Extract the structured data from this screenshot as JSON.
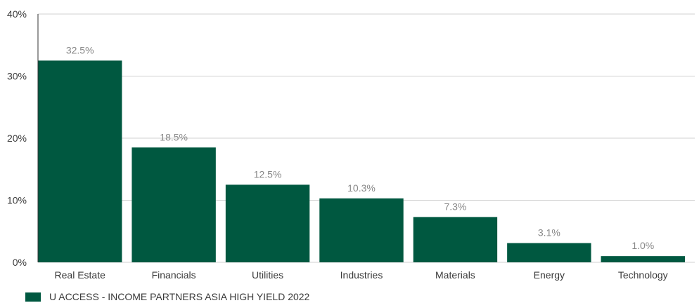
{
  "chart_data": {
    "type": "bar",
    "categories": [
      "Real Estate",
      "Financials",
      "Utilities",
      "Industries",
      "Materials",
      "Energy",
      "Technology"
    ],
    "series": [
      {
        "name": "U ACCESS - INCOME PARTNERS ASIA HIGH YIELD 2022",
        "values": [
          32.5,
          18.5,
          12.5,
          10.3,
          7.3,
          3.1,
          1.0
        ],
        "labels": [
          "32.5%",
          "18.5%",
          "12.5%",
          "10.3%",
          "7.3%",
          "3.1%",
          "1.0%"
        ]
      }
    ],
    "title": "",
    "xlabel": "",
    "ylabel": "",
    "ylim": [
      0,
      40
    ],
    "yticks": [
      0,
      10,
      20,
      30,
      40
    ],
    "ytick_labels": [
      "0%",
      "10%",
      "20%",
      "30%",
      "40%"
    ],
    "grid": true,
    "legend_position": "bottom-left",
    "bar_color": "#005840",
    "grid_color": "#d0d0d0"
  }
}
